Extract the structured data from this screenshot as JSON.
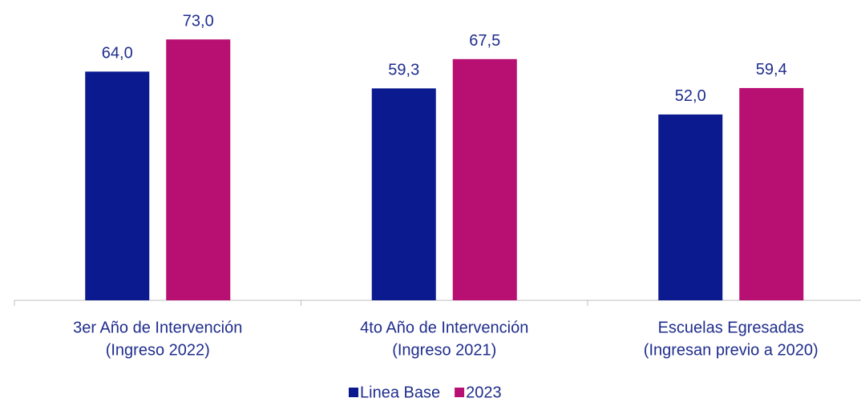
{
  "chart_data": {
    "type": "bar",
    "categories": [
      [
        "3er Año de Intervención",
        "(Ingreso 2022)"
      ],
      [
        "4to Año de Intervención",
        "(Ingreso 2021)"
      ],
      [
        "Escuelas Egresadas",
        "(Ingresan previo a 2020)"
      ]
    ],
    "series": [
      {
        "name": "Linea Base",
        "color": "#0b1a8f",
        "values": [
          64.0,
          59.3,
          52.0
        ],
        "value_labels": [
          "64,0",
          "59,3",
          "52,0"
        ]
      },
      {
        "name": "2023",
        "color": "#b80f72",
        "values": [
          73.0,
          67.5,
          59.4
        ],
        "value_labels": [
          "73,0",
          "67,5",
          "59,4"
        ]
      }
    ],
    "ylim": [
      0,
      80
    ],
    "legend": "bottom"
  }
}
